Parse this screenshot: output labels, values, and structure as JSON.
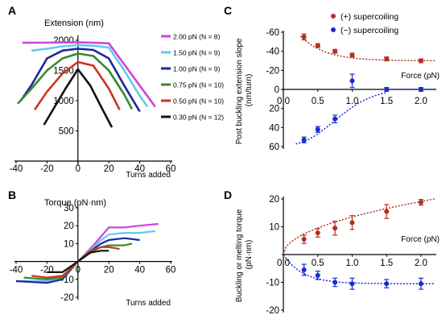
{
  "chart_data": [
    {
      "panel": "A",
      "type": "line",
      "title": "Extension (nm)",
      "xlabel": "Turns added",
      "ylabel": "",
      "xlim": [
        -40,
        60
      ],
      "ylim": [
        0,
        2000
      ],
      "xticks": [
        "-40",
        "-20",
        "0",
        "20",
        "40",
        "60"
      ],
      "yticks": [
        "500",
        "1000",
        "1500",
        "2000"
      ],
      "legend_position": "right",
      "series": [
        {
          "name": "2.00 pN (N = 8)",
          "color": "#cc44dd",
          "x": [
            -36,
            -20,
            -10,
            0,
            10,
            20,
            30,
            40,
            50
          ],
          "y": [
            1960,
            1960,
            1965,
            1965,
            1960,
            1950,
            1600,
            1250,
            900
          ]
        },
        {
          "name": "1.50 pN (N = 9)",
          "color": "#66c8ee",
          "x": [
            -30,
            -20,
            -10,
            0,
            10,
            20,
            30,
            40,
            45
          ],
          "y": [
            1830,
            1860,
            1900,
            1920,
            1910,
            1880,
            1500,
            1080,
            900
          ]
        },
        {
          "name": "1.00 pN (N = 9)",
          "color": "#1a2a9a",
          "x": [
            -37,
            -30,
            -20,
            -10,
            0,
            10,
            20,
            30,
            40
          ],
          "y": [
            1000,
            1260,
            1700,
            1830,
            1860,
            1840,
            1700,
            1250,
            820
          ]
        },
        {
          "name": "0.75 pN (N = 10)",
          "color": "#3a8a2a",
          "x": [
            -39,
            -30,
            -20,
            -10,
            0,
            10,
            20,
            30,
            35
          ],
          "y": [
            950,
            1200,
            1500,
            1700,
            1780,
            1740,
            1500,
            1100,
            860
          ]
        },
        {
          "name": "0.50 pN (N = 10)",
          "color": "#cc3322",
          "x": [
            -28,
            -20,
            -10,
            0,
            10,
            20,
            27
          ],
          "y": [
            850,
            1150,
            1450,
            1640,
            1580,
            1200,
            850
          ]
        },
        {
          "name": "0.30 pN (N = 12)",
          "color": "#111111",
          "x": [
            -22,
            -15,
            -8,
            0,
            8,
            15,
            22
          ],
          "y": [
            600,
            900,
            1200,
            1520,
            1250,
            900,
            560
          ]
        }
      ]
    },
    {
      "panel": "B",
      "type": "line",
      "title": "Torque (pN·nm)",
      "xlabel": "Turns added",
      "ylabel": "",
      "xlim": [
        -40,
        60
      ],
      "ylim": [
        -20,
        30
      ],
      "xticks": [
        "-40",
        "-20",
        "0",
        "20",
        "40",
        "60"
      ],
      "yticks": [
        "-20",
        "-10",
        "10",
        "20",
        "30"
      ],
      "series": [
        {
          "color": "#cc44dd",
          "x": [
            -40,
            -20,
            -10,
            0,
            10,
            15,
            20,
            30,
            40,
            52
          ],
          "y": [
            -11,
            -11,
            -10,
            0,
            9,
            14,
            19,
            19,
            20,
            21
          ]
        },
        {
          "color": "#66c8ee",
          "x": [
            -40,
            -20,
            -10,
            0,
            10,
            15,
            20,
            30,
            40,
            50
          ],
          "y": [
            -11,
            -11,
            -10,
            0,
            8,
            12,
            15,
            16,
            16,
            17
          ]
        },
        {
          "color": "#1a2a9a",
          "x": [
            -40,
            -20,
            -10,
            0,
            10,
            15,
            20,
            30,
            40
          ],
          "y": [
            -11,
            -12,
            -10,
            0,
            7,
            10,
            12,
            13,
            12
          ]
        },
        {
          "color": "#3a8a2a",
          "x": [
            -35,
            -20,
            -10,
            0,
            10,
            15,
            20,
            30,
            35
          ],
          "y": [
            -9,
            -10,
            -9,
            0,
            6,
            8,
            9,
            9,
            10
          ]
        },
        {
          "color": "#cc3322",
          "x": [
            -30,
            -20,
            -10,
            0,
            8,
            15,
            20,
            27
          ],
          "y": [
            -8,
            -9,
            -8,
            0,
            6,
            8,
            8,
            7
          ]
        },
        {
          "color": "#111111",
          "x": [
            -20,
            -10,
            0,
            8,
            15,
            20
          ],
          "y": [
            -6,
            -6,
            0,
            5,
            6,
            6
          ]
        }
      ]
    },
    {
      "panel": "C",
      "type": "scatter",
      "title": "",
      "xlabel": "Force (pN)",
      "ylabel": "Post buckling extension slope (nm/turn)",
      "xlim": [
        0,
        2.2
      ],
      "ylim": [
        60,
        -60
      ],
      "xticks": [
        "0.0",
        "0.5",
        "1.0",
        "1.5",
        "2.0"
      ],
      "yticks": [
        "-60",
        "-40",
        "-20",
        "0",
        "20",
        "40",
        "60"
      ],
      "legend_position": "top-right",
      "series": [
        {
          "name": "(+) supercoiling",
          "color": "#b03020",
          "x": [
            0.3,
            0.5,
            0.75,
            1.0,
            1.5,
            2.0
          ],
          "y": [
            -55,
            -46,
            -40,
            -36,
            -32,
            -30
          ],
          "err": [
            3,
            2,
            2,
            2,
            2,
            2
          ]
        },
        {
          "name": "(−) supercoiling",
          "color": "#1a2ad0",
          "x": [
            0.3,
            0.5,
            0.75,
            1.0,
            1.5,
            2.0
          ],
          "y": [
            53,
            42,
            31,
            -9,
            0,
            0
          ],
          "err": [
            3,
            3,
            4,
            7,
            2,
            2
          ]
        }
      ]
    },
    {
      "panel": "D",
      "type": "scatter",
      "title": "",
      "xlabel": "Force (pN)",
      "ylabel": "Buckling or melting torque (pN·nm)",
      "xlim": [
        0,
        2.2
      ],
      "ylim": [
        -20,
        20
      ],
      "xticks": [
        "0.0",
        "0.5",
        "1.0",
        "1.5",
        "2.0"
      ],
      "yticks": [
        "-20",
        "-10",
        "10",
        "20"
      ],
      "series": [
        {
          "color": "#b03020",
          "x": [
            0.3,
            0.5,
            0.75,
            1.0,
            1.5,
            2.0
          ],
          "y": [
            5.5,
            7.8,
            9.5,
            11.5,
            15.5,
            18.8
          ],
          "err": [
            1.5,
            1.5,
            2.5,
            2.5,
            2.5,
            1
          ]
        },
        {
          "color": "#1a2ad0",
          "x": [
            0.3,
            0.5,
            0.75,
            1.0,
            1.5,
            2.0
          ],
          "y": [
            -5.5,
            -7.5,
            -10,
            -10.5,
            -10.5,
            -10.5
          ],
          "err": [
            2,
            1.5,
            1.5,
            2,
            1.5,
            2
          ]
        }
      ]
    }
  ]
}
